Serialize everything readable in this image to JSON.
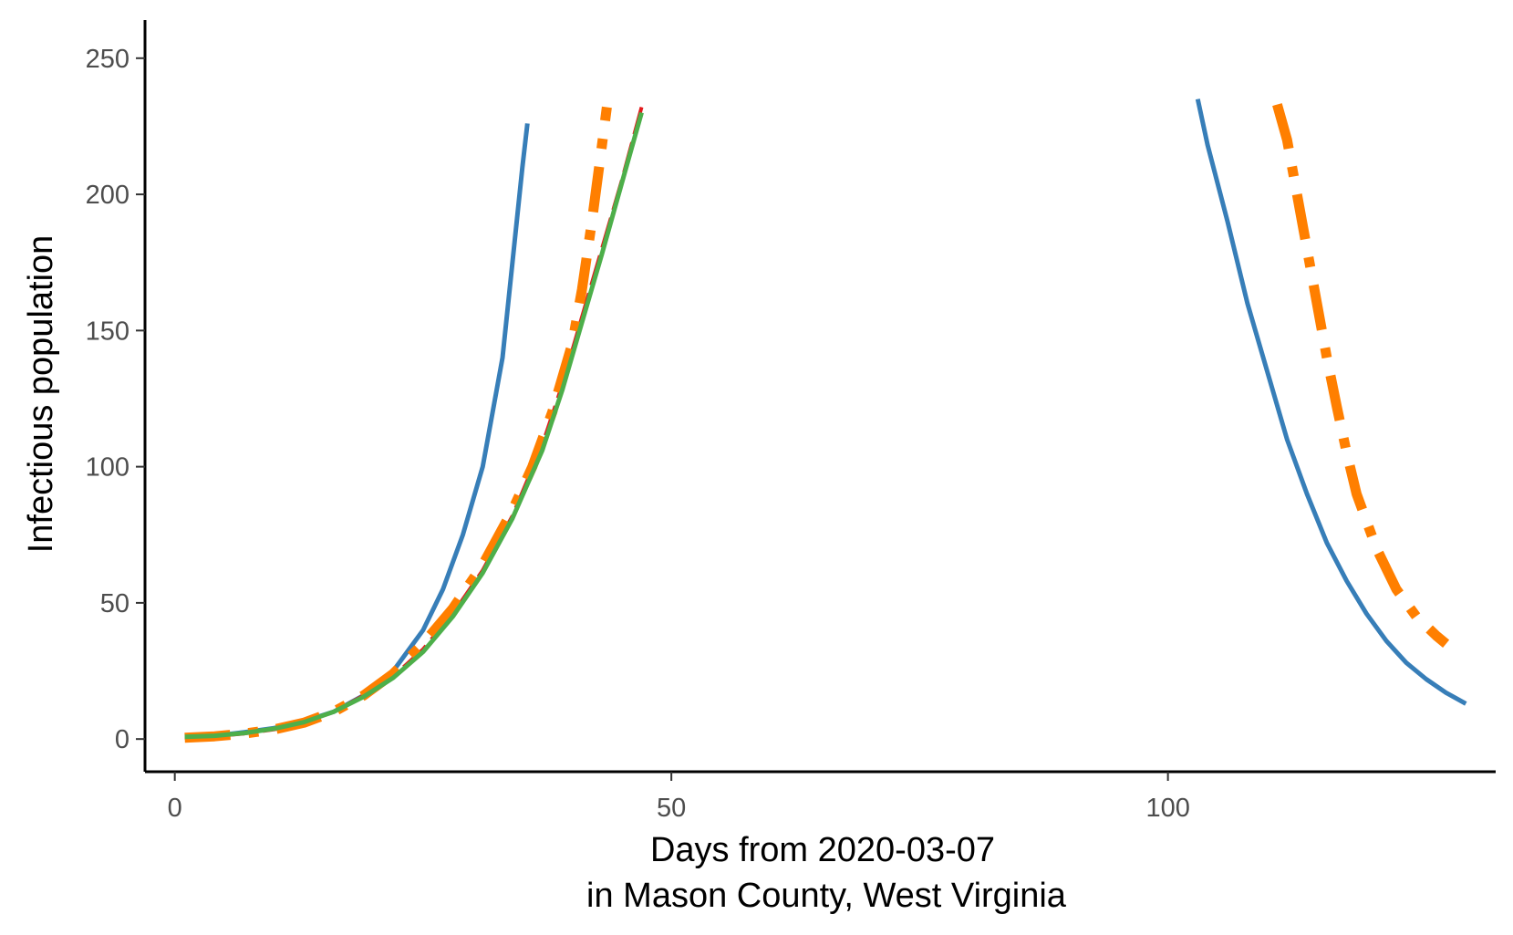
{
  "chart_data": {
    "type": "line",
    "title": "",
    "xlabel_line1": "Days from 2020-03-07",
    "xlabel_line2": "in Mason County, West Virginia",
    "ylabel": "Infectious population",
    "xlim": [
      -3,
      133
    ],
    "ylim": [
      -12,
      264
    ],
    "x_ticks": [
      0,
      50,
      100
    ],
    "y_ticks": [
      0,
      50,
      100,
      150,
      200,
      250
    ],
    "grid": false,
    "legend": "none",
    "series": [
      {
        "color": "#377EB8",
        "dash": "solid",
        "width": 5,
        "segments": [
          [
            [
              1,
              1.2
            ],
            [
              4,
              1.2
            ],
            [
              7,
              2.5
            ],
            [
              10,
              4
            ],
            [
              13,
              6.5
            ],
            [
              16,
              10
            ],
            [
              19,
              16
            ],
            [
              22,
              25
            ],
            [
              25,
              40
            ],
            [
              27,
              55
            ],
            [
              29,
              75
            ],
            [
              31,
              100
            ],
            [
              33,
              140
            ],
            [
              34,
              175
            ],
            [
              35,
              210
            ],
            [
              35.5,
              226
            ]
          ],
          [
            [
              103,
              235
            ],
            [
              104,
              218
            ],
            [
              106,
              190
            ],
            [
              108,
              160
            ],
            [
              110,
              135
            ],
            [
              112,
              110
            ],
            [
              114,
              90
            ],
            [
              116,
              72
            ],
            [
              118,
              58
            ],
            [
              120,
              46
            ],
            [
              122,
              36
            ],
            [
              124,
              28
            ],
            [
              126,
              22
            ],
            [
              128,
              17
            ],
            [
              130,
              13
            ]
          ]
        ]
      },
      {
        "color": "#E41A1C",
        "dash": "longdash",
        "width": 4,
        "segments": [
          [
            [
              1,
              0.5
            ],
            [
              4,
              1
            ],
            [
              7,
              2
            ],
            [
              10,
              3.5
            ],
            [
              13,
              6
            ],
            [
              16,
              10
            ],
            [
              19,
              16
            ],
            [
              22,
              23
            ],
            [
              25,
              33
            ],
            [
              28,
              46
            ],
            [
              31,
              62
            ],
            [
              34,
              82
            ],
            [
              37,
              108
            ],
            [
              39,
              130
            ],
            [
              41,
              155
            ],
            [
              43,
              180
            ],
            [
              45,
              205
            ],
            [
              47,
              232
            ]
          ]
        ]
      },
      {
        "color": "#FF7F00",
        "dash": "dashdot",
        "width": 11,
        "segments": [
          [
            [
              1,
              0.5
            ],
            [
              4,
              1
            ],
            [
              7,
              2
            ],
            [
              10,
              3.5
            ],
            [
              13,
              6
            ],
            [
              16,
              10
            ],
            [
              19,
              16
            ],
            [
              22,
              24
            ],
            [
              25,
              35
            ],
            [
              28,
              48
            ],
            [
              31,
              64
            ],
            [
              34,
              84
            ],
            [
              36,
              100
            ],
            [
              38,
              120
            ],
            [
              40,
              145
            ],
            [
              41,
              165
            ],
            [
              42,
              190
            ],
            [
              42.8,
              212
            ],
            [
              43.5,
              232
            ]
          ],
          [
            [
              111,
              233
            ],
            [
              112,
              220
            ],
            [
              113,
              200
            ],
            [
              114,
              180
            ],
            [
              115,
              160
            ],
            [
              116,
              140
            ],
            [
              117,
              122
            ],
            [
              118,
              105
            ],
            [
              119,
              90
            ],
            [
              121,
              70
            ],
            [
              123,
              55
            ],
            [
              125,
              45
            ],
            [
              127,
              38
            ],
            [
              128,
              35
            ]
          ]
        ]
      },
      {
        "color": "#4DAF4A",
        "dash": "solid",
        "width": 5,
        "segments": [
          [
            [
              1,
              0.8
            ],
            [
              4,
              1.2
            ],
            [
              7,
              2.2
            ],
            [
              10,
              3.8
            ],
            [
              13,
              6.2
            ],
            [
              16,
              10
            ],
            [
              19,
              15.5
            ],
            [
              22,
              22.5
            ],
            [
              25,
              32
            ],
            [
              28,
              45
            ],
            [
              31,
              61
            ],
            [
              34,
              81
            ],
            [
              37,
              106
            ],
            [
              39,
              128
            ],
            [
              41,
              153
            ],
            [
              43,
              178
            ],
            [
              45,
              204
            ],
            [
              47,
              230
            ]
          ]
        ]
      }
    ]
  }
}
